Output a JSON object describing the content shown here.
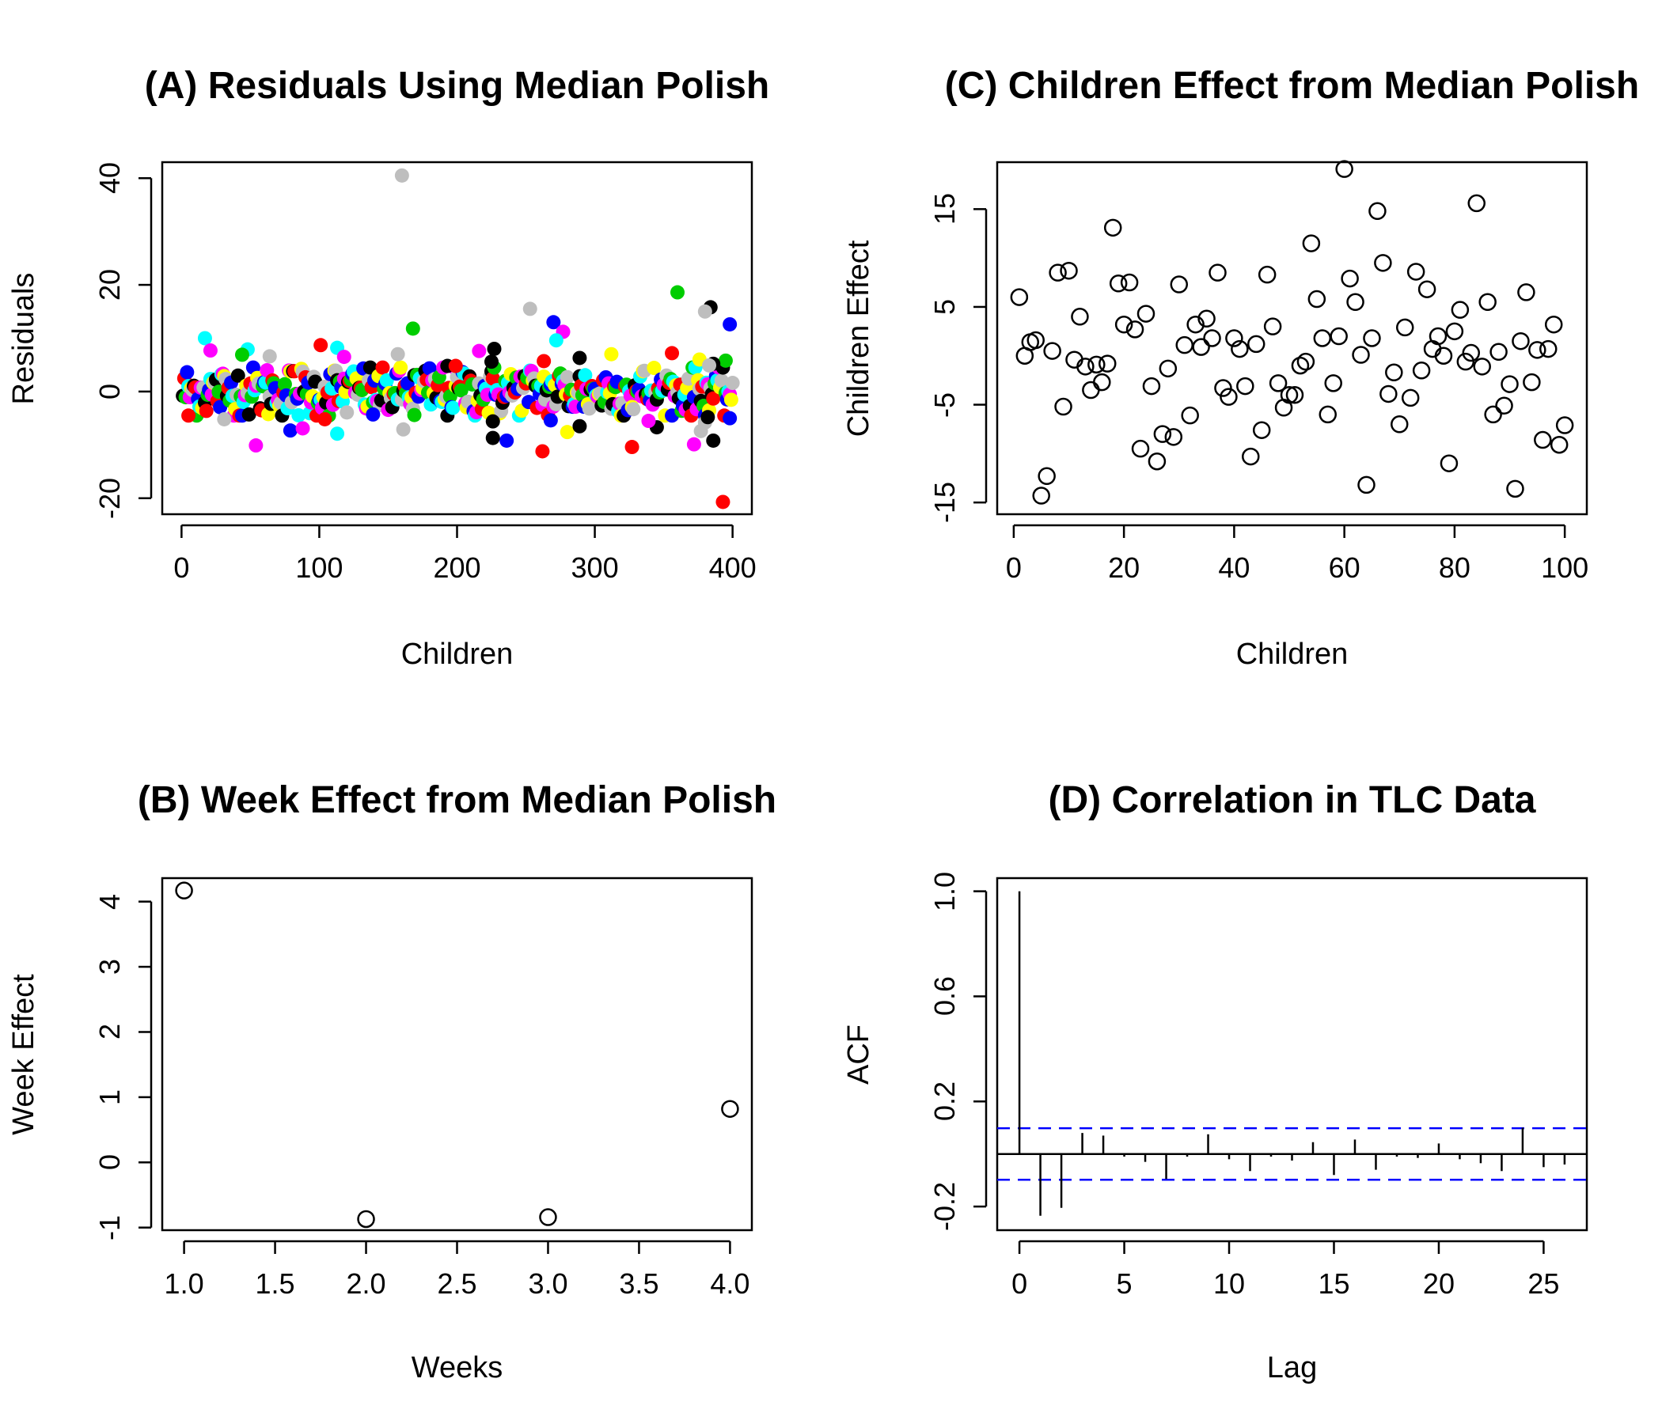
{
  "chart_data": [
    {
      "id": "A",
      "type": "scatter",
      "title": "(A) Residuals Using Median Polish",
      "xlabel": "Children",
      "ylabel": "Residuals",
      "xlim": [
        -14,
        414
      ],
      "ylim": [
        -23,
        43
      ],
      "xticks": [
        0,
        100,
        200,
        300,
        400
      ],
      "yticks": [
        -20,
        0,
        20,
        40
      ],
      "marker": "filled-circle",
      "colors": [
        "#000000",
        "#ff0000",
        "#00cd00",
        "#0000ff",
        "#00ffff",
        "#ff00ff",
        "#ffff00",
        "#bebebe"
      ],
      "residual_band_sd": 2.6,
      "highlighted_points": [
        {
          "x": 160,
          "y": 40.5,
          "color": "#bebebe"
        },
        {
          "x": 360,
          "y": 18.6,
          "color": "#00cd00"
        },
        {
          "x": 384,
          "y": 15.8,
          "color": "#000000"
        },
        {
          "x": 253,
          "y": 15.5,
          "color": "#bebebe"
        },
        {
          "x": 380,
          "y": 15.0,
          "color": "#bebebe"
        },
        {
          "x": 270,
          "y": 13.0,
          "color": "#0000ff"
        },
        {
          "x": 398,
          "y": 12.6,
          "color": "#0000ff"
        },
        {
          "x": 168,
          "y": 11.8,
          "color": "#00cd00"
        },
        {
          "x": 277,
          "y": 11.2,
          "color": "#ff00ff"
        },
        {
          "x": 17,
          "y": 10.0,
          "color": "#00ffff"
        },
        {
          "x": 272,
          "y": 9.6,
          "color": "#00ffff"
        },
        {
          "x": 101,
          "y": 8.7,
          "color": "#ff0000"
        },
        {
          "x": 113,
          "y": 8.2,
          "color": "#00ffff"
        },
        {
          "x": 227,
          "y": 8.0,
          "color": "#000000"
        },
        {
          "x": 48,
          "y": 7.9,
          "color": "#00ffff"
        },
        {
          "x": 21,
          "y": 7.7,
          "color": "#ff00ff"
        },
        {
          "x": 216,
          "y": 7.6,
          "color": "#ff00ff"
        },
        {
          "x": 356,
          "y": 7.2,
          "color": "#ff0000"
        },
        {
          "x": 312,
          "y": 7.0,
          "color": "#ffff00"
        },
        {
          "x": 157,
          "y": 7.0,
          "color": "#bebebe"
        },
        {
          "x": 44,
          "y": 6.9,
          "color": "#00cd00"
        },
        {
          "x": 64,
          "y": 6.6,
          "color": "#bebebe"
        },
        {
          "x": 118,
          "y": 6.5,
          "color": "#ff00ff"
        },
        {
          "x": 289,
          "y": 6.3,
          "color": "#000000"
        },
        {
          "x": 376,
          "y": 6.0,
          "color": "#ffff00"
        },
        {
          "x": 395,
          "y": 5.8,
          "color": "#00cd00"
        },
        {
          "x": 263,
          "y": 5.7,
          "color": "#ff0000"
        },
        {
          "x": 225,
          "y": 5.6,
          "color": "#000000"
        },
        {
          "x": 386,
          "y": 5.2,
          "color": "#000000"
        },
        {
          "x": 383,
          "y": 4.9,
          "color": "#bebebe"
        },
        {
          "x": 193,
          "y": 4.8,
          "color": "#000000"
        },
        {
          "x": 199,
          "y": 4.8,
          "color": "#ff0000"
        },
        {
          "x": 393,
          "y": -20.7,
          "color": "#ff0000"
        },
        {
          "x": 262,
          "y": -11.2,
          "color": "#ff0000"
        },
        {
          "x": 327,
          "y": -10.4,
          "color": "#ff0000"
        },
        {
          "x": 54,
          "y": -10.1,
          "color": "#ff00ff"
        },
        {
          "x": 372,
          "y": -9.9,
          "color": "#ff00ff"
        },
        {
          "x": 236,
          "y": -9.2,
          "color": "#0000ff"
        },
        {
          "x": 386,
          "y": -9.2,
          "color": "#000000"
        },
        {
          "x": 226,
          "y": -8.7,
          "color": "#000000"
        },
        {
          "x": 113,
          "y": -7.9,
          "color": "#00ffff"
        },
        {
          "x": 280,
          "y": -7.6,
          "color": "#ffff00"
        },
        {
          "x": 377,
          "y": -7.4,
          "color": "#bebebe"
        },
        {
          "x": 79,
          "y": -7.3,
          "color": "#0000ff"
        },
        {
          "x": 161,
          "y": -7.1,
          "color": "#bebebe"
        },
        {
          "x": 88,
          "y": -6.9,
          "color": "#ff00ff"
        },
        {
          "x": 345,
          "y": -6.7,
          "color": "#000000"
        },
        {
          "x": 289,
          "y": -6.5,
          "color": "#000000"
        },
        {
          "x": 380,
          "y": -5.8,
          "color": "#bebebe"
        },
        {
          "x": 226,
          "y": -5.6,
          "color": "#000000"
        },
        {
          "x": 339,
          "y": -5.5,
          "color": "#ff00ff"
        },
        {
          "x": 268,
          "y": -5.4,
          "color": "#0000ff"
        },
        {
          "x": 31,
          "y": -5.2,
          "color": "#bebebe"
        },
        {
          "x": 104,
          "y": -5.2,
          "color": "#ff0000"
        },
        {
          "x": 398,
          "y": -5.0,
          "color": "#0000ff"
        },
        {
          "x": 382,
          "y": -4.8,
          "color": "#000000"
        },
        {
          "x": 5,
          "y": -4.5,
          "color": "#ff0000"
        },
        {
          "x": 169,
          "y": -4.4,
          "color": "#00cd00"
        },
        {
          "x": 139,
          "y": -4.3,
          "color": "#0000ff"
        }
      ]
    },
    {
      "id": "B",
      "type": "scatter",
      "title": "(B) Week Effect from Median Polish",
      "xlabel": "Weeks",
      "ylabel": "Week Effect",
      "xlim": [
        0.88,
        4.12
      ],
      "ylim": [
        -1.04,
        4.36
      ],
      "xticks": [
        "1.0",
        "1.5",
        "2.0",
        "2.5",
        "3.0",
        "3.5",
        "4.0"
      ],
      "yticks": [
        -1,
        0,
        1,
        2,
        3,
        4
      ],
      "marker": "open-circle",
      "x": [
        1,
        2,
        3,
        4
      ],
      "y": [
        4.17,
        -0.87,
        -0.84,
        0.82
      ]
    },
    {
      "id": "C",
      "type": "scatter",
      "title": "(C) Children Effect from Median Polish",
      "xlabel": "Children",
      "ylabel": "Children Effect",
      "xlim": [
        -3,
        104
      ],
      "ylim": [
        -16.2,
        19.8
      ],
      "xticks": [
        0,
        20,
        40,
        60,
        80,
        100
      ],
      "yticks": [
        -15,
        -5,
        5,
        15
      ],
      "marker": "open-circle",
      "x": [
        1,
        2,
        3,
        4,
        5,
        6,
        7,
        8,
        9,
        10,
        11,
        12,
        13,
        14,
        15,
        16,
        17,
        18,
        19,
        20,
        21,
        22,
        23,
        24,
        25,
        26,
        27,
        28,
        29,
        30,
        31,
        32,
        33,
        34,
        35,
        36,
        37,
        38,
        39,
        40,
        41,
        42,
        43,
        44,
        45,
        46,
        47,
        48,
        49,
        50,
        51,
        52,
        53,
        54,
        55,
        56,
        57,
        58,
        59,
        60,
        61,
        62,
        63,
        64,
        65,
        66,
        67,
        68,
        69,
        70,
        71,
        72,
        73,
        74,
        75,
        76,
        77,
        78,
        79,
        80,
        81,
        82,
        83,
        84,
        85,
        86,
        87,
        88,
        89,
        90,
        91,
        92,
        93,
        94,
        95,
        96,
        97,
        98,
        99,
        100
      ],
      "y": [
        6.0,
        0.0,
        1.4,
        1.6,
        -14.3,
        -12.3,
        0.5,
        8.5,
        -5.2,
        8.7,
        -0.4,
        4.0,
        -1.1,
        -3.5,
        -0.9,
        -2.7,
        -0.8,
        13.1,
        7.4,
        3.2,
        7.5,
        2.7,
        -9.5,
        4.3,
        -3.1,
        -10.8,
        -8.0,
        -1.3,
        -8.3,
        7.3,
        1.1,
        -6.1,
        3.2,
        0.9,
        3.8,
        1.8,
        8.5,
        -3.3,
        -4.2,
        1.8,
        0.7,
        -3.1,
        -10.3,
        1.2,
        -7.6,
        8.3,
        3.0,
        -2.8,
        -5.3,
        -4.0,
        -4.0,
        -1.0,
        -0.6,
        11.5,
        5.8,
        1.8,
        -6.0,
        -2.8,
        2.0,
        19.1,
        7.9,
        5.5,
        0.1,
        -13.2,
        1.8,
        14.8,
        9.5,
        -3.9,
        -1.7,
        -7.0,
        2.9,
        -4.3,
        8.6,
        -1.5,
        6.8,
        0.7,
        2.0,
        0.0,
        -11.0,
        2.5,
        4.7,
        -0.6,
        0.3,
        15.6,
        -1.1,
        5.5,
        -6.0,
        0.4,
        -5.1,
        -2.9,
        -13.6,
        1.5,
        6.5,
        -2.7,
        0.6,
        -8.6,
        0.7,
        3.2,
        -9.1,
        -7.1
      ]
    },
    {
      "id": "D",
      "type": "bar",
      "title": "(D) Correlation in TLC Data",
      "xlabel": "Lag",
      "ylabel": "ACF",
      "xlim": [
        -1.06,
        27.06
      ],
      "ylim": [
        -0.29,
        1.05
      ],
      "xticks": [
        0,
        5,
        10,
        15,
        20,
        25
      ],
      "yticks": [
        "-0.2",
        "0.2",
        "0.6",
        "1.0"
      ],
      "confidence_bound": 0.098,
      "lags": [
        0,
        1,
        2,
        3,
        4,
        5,
        6,
        7,
        8,
        9,
        10,
        11,
        12,
        13,
        14,
        15,
        16,
        17,
        18,
        19,
        20,
        21,
        22,
        23,
        24,
        25,
        26
      ],
      "acf": [
        1.0,
        -0.235,
        -0.205,
        0.08,
        0.07,
        -0.01,
        -0.03,
        -0.095,
        -0.01,
        0.075,
        -0.02,
        -0.065,
        -0.01,
        -0.025,
        0.045,
        -0.08,
        0.055,
        -0.06,
        -0.01,
        -0.015,
        0.04,
        -0.02,
        -0.035,
        -0.065,
        0.1,
        -0.05,
        -0.04
      ]
    }
  ]
}
